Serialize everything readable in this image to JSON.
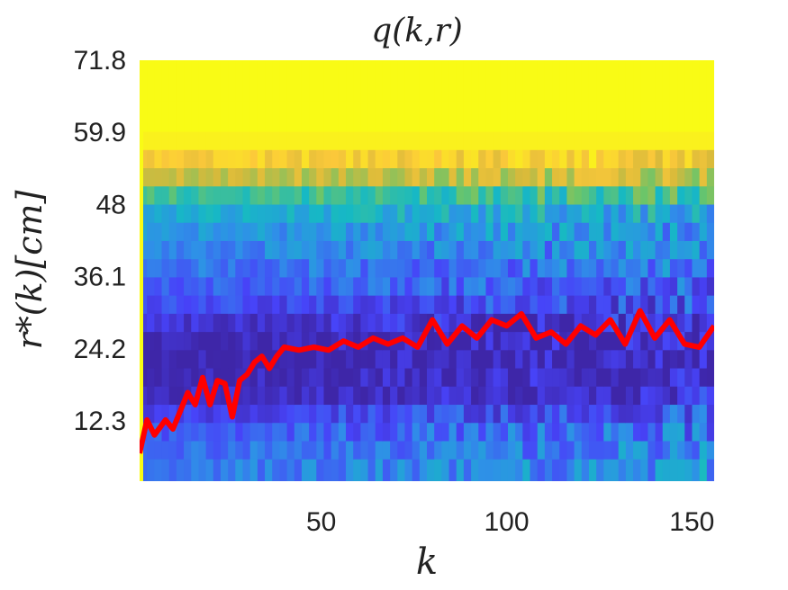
{
  "chart_data": {
    "type": "heatmap",
    "title": "q(k,r)",
    "xlabel": "k",
    "ylabel": "r*(k)[cm]",
    "x_range": [
      1,
      156
    ],
    "y_range": [
      2.4,
      71.8
    ],
    "x_ticks": [
      50,
      100,
      150
    ],
    "x_tick_labels": [
      "50",
      "100",
      "150"
    ],
    "y_ticks": [
      12.3,
      24.2,
      36.1,
      48,
      59.9,
      71.8
    ],
    "y_tick_labels": [
      "12.3",
      "24.2",
      "36.1",
      "48",
      "59.9",
      "71.8"
    ],
    "colormap": [
      "#3e26a8",
      "#4743f8",
      "#2f8fe8",
      "#16b9c4",
      "#6ac56a",
      "#d8ba3a",
      "#fcc93a",
      "#f9fb15"
    ],
    "line_color": "#ff0000",
    "line_series": {
      "name": "r*(k)",
      "k": [
        1,
        3,
        5,
        8,
        10,
        12,
        14,
        16,
        18,
        20,
        22,
        24,
        26,
        28,
        30,
        32,
        34,
        36,
        38,
        40,
        44,
        48,
        52,
        56,
        60,
        64,
        68,
        72,
        76,
        80,
        84,
        88,
        92,
        96,
        100,
        104,
        108,
        112,
        116,
        120,
        124,
        128,
        132,
        136,
        140,
        144,
        148,
        152,
        156
      ],
      "r": [
        7,
        12.5,
        10,
        12.5,
        11,
        14,
        17,
        15,
        19.5,
        15,
        19,
        18.5,
        13,
        19,
        20,
        22,
        23,
        21,
        23,
        24.5,
        24,
        24.5,
        24,
        25.5,
        24.5,
        26,
        25,
        26,
        24.5,
        29,
        25,
        28,
        26,
        29,
        28,
        30,
        26,
        27,
        25,
        28,
        26.5,
        29,
        25,
        30.5,
        26,
        29,
        25,
        24.5,
        28
      ]
    },
    "heat_rows_r": [
      71.8,
      65,
      60,
      57,
      54,
      51,
      48,
      45,
      42,
      39,
      36,
      33,
      30,
      27,
      24,
      21,
      18,
      15,
      12,
      9,
      6,
      2.4
    ],
    "heat_rows_level": [
      1.0,
      1.0,
      0.97,
      0.85,
      0.7,
      0.5,
      0.38,
      0.32,
      0.28,
      0.24,
      0.2,
      0.15,
      0.08,
      0.05,
      0.04,
      0.05,
      0.08,
      0.12,
      0.18,
      0.22,
      0.25,
      0.25
    ]
  }
}
